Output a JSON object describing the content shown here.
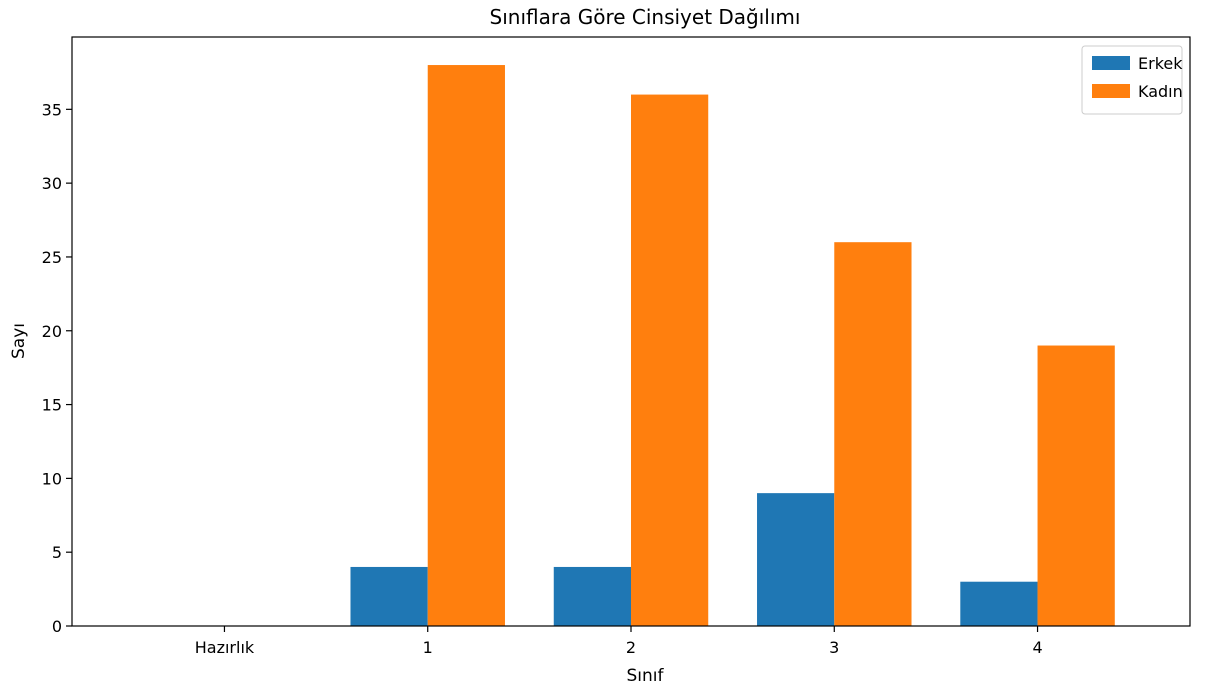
{
  "chart_data": {
    "type": "bar",
    "title": "Sınıflara Göre Cinsiyet Dağılımı",
    "xlabel": "Sınıf",
    "ylabel": "Sayı",
    "categories": [
      "Hazırlık",
      "1",
      "2",
      "3",
      "4"
    ],
    "series": [
      {
        "name": "Erkek",
        "values": [
          0,
          4,
          4,
          9,
          3
        ],
        "color": "#1f77b4"
      },
      {
        "name": "Kadın",
        "values": [
          0,
          38,
          36,
          26,
          19
        ],
        "color": "#ff7f0e"
      }
    ],
    "ylim": [
      0,
      39.9
    ],
    "yticks": [
      0,
      5,
      10,
      15,
      20,
      25,
      30,
      35
    ],
    "grid": false,
    "legend_position": "top-right"
  }
}
